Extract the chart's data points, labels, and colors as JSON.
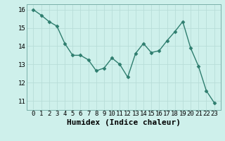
{
  "x": [
    0,
    1,
    2,
    3,
    4,
    5,
    6,
    7,
    8,
    9,
    10,
    11,
    12,
    13,
    14,
    15,
    16,
    17,
    18,
    19,
    20,
    21,
    22,
    23
  ],
  "y": [
    16.0,
    15.7,
    15.35,
    15.1,
    14.15,
    13.5,
    13.5,
    13.25,
    12.65,
    12.8,
    13.35,
    13.0,
    12.3,
    13.6,
    14.15,
    13.65,
    13.75,
    14.3,
    14.8,
    15.35,
    13.9,
    12.9,
    11.55,
    10.9
  ],
  "line_color": "#2e7d6e",
  "marker": "D",
  "marker_size": 2.5,
  "bg_color": "#cef0eb",
  "grid_color": "#b8ddd8",
  "xlabel": "Humidex (Indice chaleur)",
  "ylim": [
    10.5,
    16.3
  ],
  "yticks": [
    11,
    12,
    13,
    14,
    15,
    16
  ],
  "xticks": [
    0,
    1,
    2,
    3,
    4,
    5,
    6,
    7,
    8,
    9,
    10,
    11,
    12,
    13,
    14,
    15,
    16,
    17,
    18,
    19,
    20,
    21,
    22,
    23
  ],
  "tick_font_size": 6.5,
  "label_font_size": 8.0
}
